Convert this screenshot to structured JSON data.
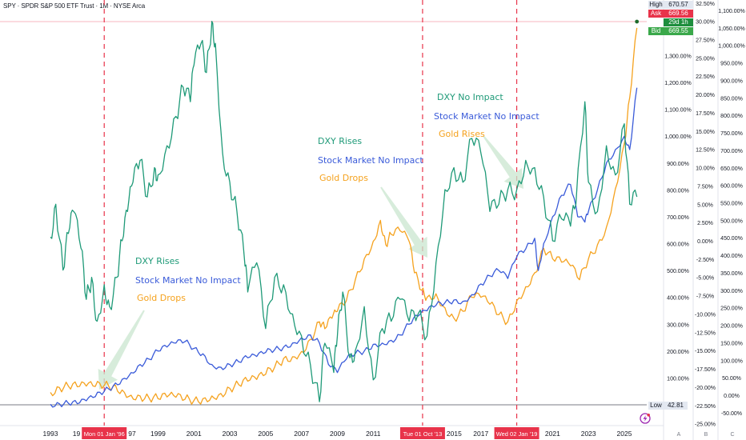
{
  "header": {
    "title": "SPY · SPDR S&P 500 ETF Trust · 1M · NYSE Arca"
  },
  "price_tags": {
    "high_label": "High",
    "high_value": "670.57",
    "ask_label": "Ask",
    "ask_value": "669.56",
    "countdown": "29d 1h",
    "bid_label": "Bid",
    "bid_value": "669.55",
    "low_label": "Low",
    "low_value": "42.81"
  },
  "colors": {
    "spy": "#3a5bd9",
    "dxy": "#1f9a78",
    "gold": "#f5a21e",
    "marker": "#e8334a",
    "ask": "#e8334a",
    "bid": "#3aa84a",
    "countdown": "#1e8e3e",
    "arrow": "#c9e6cf"
  },
  "scale_tabs": [
    "A",
    "B",
    "C"
  ],
  "date_markers": [
    {
      "label": "Mon 01 Jan '96",
      "year": 1996.0
    },
    {
      "label": "Tue 01 Oct '13",
      "year": 2013.75
    },
    {
      "label": "Wed 02 Jan '19",
      "year": 2019.0
    }
  ],
  "annotations": [
    {
      "lines": [
        "DXY Rises",
        "Stock Market No Impact",
        "Gold Drops"
      ],
      "series": [
        "dxy",
        "spy",
        "gold"
      ]
    },
    {
      "lines": [
        "DXY Rises",
        "Stock Market No Impact",
        "Gold Drops"
      ],
      "series": [
        "dxy",
        "spy",
        "gold"
      ]
    },
    {
      "lines": [
        "DXY No Impact",
        "Stock Market No Impact",
        "Gold Rises"
      ],
      "series": [
        "dxy",
        "spy",
        "gold"
      ]
    }
  ],
  "bolt_icon": "lightning-icon",
  "chart_data": {
    "type": "line",
    "title": "SPY · SPDR S&P 500 ETF Trust · 1M · NYSE Arca",
    "xlabel": "",
    "ylabel": "",
    "x_ticks": [
      "1993",
      "19",
      "97",
      "1999",
      "2001",
      "2003",
      "2005",
      "2007",
      "2009",
      "2011",
      "2015",
      "2017",
      "2021",
      "2023",
      "2025"
    ],
    "x_tick_years": [
      1993,
      1995,
      1997,
      1999,
      2001,
      2003,
      2005,
      2007,
      2009,
      2011,
      2015,
      2017,
      2021,
      2023,
      2025
    ],
    "xlim": [
      1991.6,
      2027.2
    ],
    "axes": {
      "A": {
        "ticks": [
          "1,300.00%",
          "1,200.00%",
          "1,100.00%",
          "1,000.00%",
          "900.00%",
          "800.00%",
          "700.00%",
          "600.00%",
          "500.00%",
          "400.00%",
          "300.00%",
          "200.00%",
          "100.00%"
        ],
        "values": [
          1300,
          1200,
          1100,
          1000,
          900,
          800,
          700,
          600,
          500,
          400,
          300,
          200,
          100
        ]
      },
      "B": {
        "ticks": [
          "32.50%",
          "30.00%",
          "27.50%",
          "25.00%",
          "22.50%",
          "20.00%",
          "17.50%",
          "15.00%",
          "12.50%",
          "10.00%",
          "7.50%",
          "5.00%",
          "2.50%",
          "0.00%",
          "-2.50%",
          "-5.00%",
          "-7.50%",
          "-10.00%",
          "-12.50%",
          "-15.00%",
          "-17.50%",
          "-20.00%",
          "-22.50%",
          "-25.00%"
        ],
        "values": [
          32.5,
          30,
          27.5,
          25,
          22.5,
          20,
          17.5,
          15,
          12.5,
          10,
          7.5,
          5,
          2.5,
          0,
          -2.5,
          -5,
          -7.5,
          -10,
          -12.5,
          -15,
          -17.5,
          -20,
          -22.5,
          -25
        ]
      },
      "C": {
        "ticks": [
          "1,100.00%",
          "1,050.00%",
          "1,000.00%",
          "950.00%",
          "900.00%",
          "850.00%",
          "800.00%",
          "750.00%",
          "700.00%",
          "650.00%",
          "600.00%",
          "550.00%",
          "500.00%",
          "450.00%",
          "400.00%",
          "350.00%",
          "300.00%",
          "250.00%",
          "200.00%",
          "150.00%",
          "100.00%",
          "50.00%",
          "0.00%",
          "-50.00%"
        ],
        "values": [
          1100,
          1050,
          1000,
          950,
          900,
          850,
          800,
          750,
          700,
          650,
          600,
          550,
          500,
          450,
          400,
          350,
          300,
          250,
          200,
          150,
          100,
          50,
          0,
          -50
        ]
      }
    },
    "series": [
      {
        "name": "SPY",
        "axis": "A",
        "color_key": "spy",
        "x": [
          1993,
          1993.5,
          1994,
          1994.5,
          1995,
          1995.5,
          1996,
          1996.5,
          1997,
          1997.5,
          1998,
          1998.5,
          1999,
          1999.5,
          2000,
          2000.5,
          2001,
          2001.5,
          2002,
          2002.5,
          2003,
          2003.5,
          2004,
          2004.5,
          2005,
          2005.5,
          2006,
          2006.5,
          2007,
          2007.5,
          2008,
          2008.5,
          2009,
          2009.5,
          2010,
          2010.5,
          2011,
          2011.5,
          2012,
          2012.5,
          2013,
          2013.5,
          2014,
          2014.5,
          2015,
          2015.5,
          2016,
          2016.5,
          2017,
          2017.5,
          2018,
          2018.5,
          2019,
          2019.5,
          2020,
          2020.2,
          2020.5,
          2021,
          2021.5,
          2022,
          2022.4,
          2022.8,
          2023,
          2023.5,
          2024,
          2024.5,
          2025,
          2025.3,
          2025.7
        ],
        "y": [
          2,
          4,
          6,
          4,
          15,
          30,
          50,
          70,
          95,
          120,
          150,
          170,
          200,
          215,
          230,
          235,
          210,
          190,
          150,
          140,
          150,
          160,
          175,
          180,
          195,
          205,
          215,
          230,
          250,
          260,
          230,
          150,
          120,
          170,
          190,
          200,
          225,
          230,
          240,
          260,
          300,
          330,
          350,
          370,
          380,
          390,
          385,
          410,
          450,
          480,
          500,
          470,
          550,
          580,
          620,
          500,
          600,
          700,
          780,
          820,
          700,
          680,
          720,
          800,
          900,
          950,
          1000,
          950,
          1180
        ]
      },
      {
        "name": "DXY",
        "axis": "B",
        "color_key": "dxy",
        "x": [
          1993,
          1993.3,
          1993.7,
          1994,
          1994.3,
          1994.7,
          1995,
          1995.3,
          1995.6,
          1996,
          1996.3,
          1996.7,
          1997,
          1997.3,
          1997.6,
          1998,
          1998.4,
          1998.8,
          1999,
          1999.5,
          2000,
          2000.4,
          2000.8,
          2001,
          2001.4,
          2001.7,
          2002,
          2002.2,
          2002.6,
          2003,
          2003.4,
          2003.8,
          2004,
          2004.5,
          2005,
          2005.5,
          2006,
          2006.5,
          2007,
          2007.5,
          2008,
          2008.3,
          2008.8,
          2009,
          2009.3,
          2009.7,
          2010,
          2010.5,
          2011,
          2011.5,
          2012,
          2012.5,
          2013,
          2013.5,
          2014,
          2014.5,
          2015,
          2015.5,
          2016,
          2016.5,
          2017,
          2017.5,
          2018,
          2018.5,
          2019,
          2019.5,
          2020,
          2020.5,
          2021,
          2021.5,
          2022,
          2022.3,
          2022.8,
          2023,
          2023.5,
          2024,
          2024.5,
          2025,
          2025.3,
          2025.7
        ],
        "y": [
          0.5,
          5,
          -4,
          1,
          4,
          -1,
          -8,
          -5,
          -11,
          -6,
          -9,
          -5,
          0,
          4,
          8,
          11,
          6,
          10,
          9,
          13,
          17,
          21,
          19,
          24,
          27,
          23,
          30,
          27,
          12,
          8,
          4,
          -2,
          -7,
          -3,
          -12,
          -5,
          -6,
          -10,
          -13,
          -17,
          -22,
          -14,
          -18,
          -13,
          -7,
          -16,
          -15,
          -9,
          -19,
          -12,
          -11,
          -8,
          -11,
          -10,
          -13,
          -3,
          7,
          10,
          8,
          14,
          12,
          4,
          5,
          7,
          7,
          11,
          10,
          6,
          0,
          3,
          2,
          5,
          19,
          8,
          4,
          13,
          9,
          16,
          5,
          6
        ]
      },
      {
        "name": "Gold",
        "axis": "C",
        "color_key": "gold",
        "x": [
          1993,
          1993.5,
          1994,
          1994.5,
          1995,
          1995.5,
          1996,
          1996.5,
          1997,
          1997.5,
          1998,
          1998.5,
          1999,
          1999.5,
          2000,
          2000.5,
          2001,
          2001.5,
          2002,
          2002.5,
          2003,
          2003.5,
          2004,
          2004.5,
          2005,
          2005.5,
          2006,
          2006.5,
          2007,
          2007.5,
          2008,
          2008.3,
          2008.7,
          2009,
          2009.5,
          2010,
          2010.5,
          2011,
          2011.4,
          2011.7,
          2012,
          2012.5,
          2013,
          2013.3,
          2013.7,
          2014,
          2014.5,
          2015,
          2015.5,
          2016,
          2016.5,
          2017,
          2017.5,
          2018,
          2018.5,
          2019,
          2019.5,
          2020,
          2020.5,
          2021,
          2021.5,
          2022,
          2022.5,
          2023,
          2023.5,
          2024,
          2024.5,
          2025,
          2025.3,
          2025.7
        ],
        "y": [
          8,
          22,
          26,
          24,
          26,
          25,
          28,
          26,
          15,
          0,
          -2,
          -8,
          -10,
          -5,
          -6,
          -12,
          -15,
          -10,
          -2,
          5,
          20,
          30,
          40,
          45,
          60,
          80,
          105,
          110,
          125,
          160,
          210,
          190,
          220,
          240,
          270,
          330,
          390,
          440,
          500,
          430,
          460,
          470,
          440,
          350,
          300,
          280,
          290,
          250,
          220,
          240,
          280,
          280,
          260,
          230,
          210,
          270,
          310,
          350,
          420,
          390,
          380,
          370,
          330,
          390,
          430,
          480,
          590,
          720,
          850,
          1050
        ]
      }
    ]
  }
}
